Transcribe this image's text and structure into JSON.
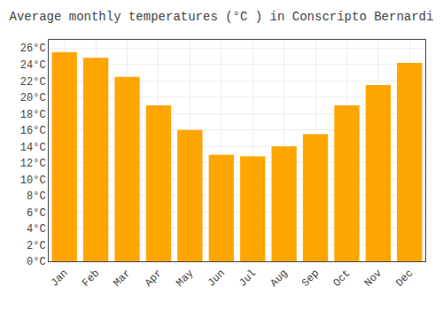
{
  "chart_data": {
    "type": "bar",
    "title": "Average monthly temperatures (°C ) in Conscripto Bernardi",
    "categories": [
      "Jan",
      "Feb",
      "Mar",
      "Apr",
      "May",
      "Jun",
      "Jul",
      "Aug",
      "Sep",
      "Oct",
      "Nov",
      "Dec"
    ],
    "values": [
      25.5,
      24.8,
      22.5,
      19.0,
      16.0,
      13.0,
      12.8,
      14.0,
      15.5,
      19.0,
      21.5,
      24.2
    ],
    "color": "#FFA500",
    "ylim": [
      0,
      27
    ],
    "yticks": [
      {
        "value": 0,
        "label": "0°C"
      },
      {
        "value": 2,
        "label": "2°C"
      },
      {
        "value": 4,
        "label": "4°C"
      },
      {
        "value": 6,
        "label": "6°C"
      },
      {
        "value": 8,
        "label": "8°C"
      },
      {
        "value": 10,
        "label": "10°C"
      },
      {
        "value": 12,
        "label": "12°C"
      },
      {
        "value": 14,
        "label": "14°C"
      },
      {
        "value": 16,
        "label": "16°C"
      },
      {
        "value": 18,
        "label": "18°C"
      },
      {
        "value": 20,
        "label": "20°C"
      },
      {
        "value": 22,
        "label": "22°C"
      },
      {
        "value": 24,
        "label": "24°C"
      },
      {
        "value": 26,
        "label": "26°C"
      }
    ],
    "grid": true
  }
}
